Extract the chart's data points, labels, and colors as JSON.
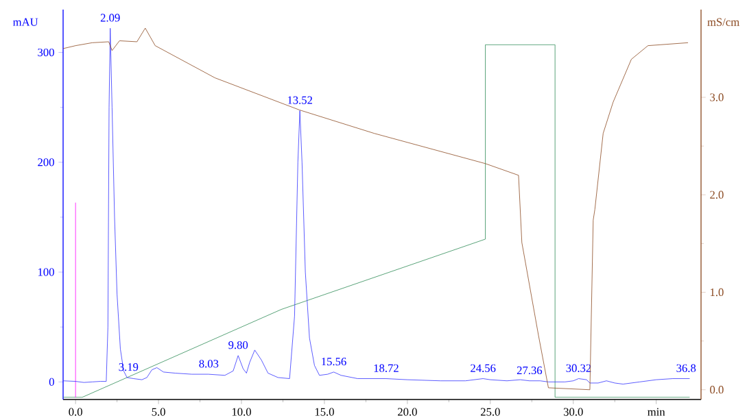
{
  "chart_data": {
    "type": "line",
    "ylabel": "mAU",
    "y2label": "mS/cm",
    "xlim": [
      -0.75,
      37.7
    ],
    "ylim": [
      -16,
      339
    ],
    "y2lim": [
      -0.1,
      3.9
    ],
    "xticks": [
      {
        "value": 0,
        "label": "0.0"
      },
      {
        "value": 5,
        "label": "5.0"
      },
      {
        "value": 10,
        "label": "10.0"
      },
      {
        "value": 15,
        "label": "15.0"
      },
      {
        "value": 20,
        "label": "20.0"
      },
      {
        "value": 25,
        "label": "25.0"
      },
      {
        "value": 30,
        "label": "30.0"
      },
      {
        "value": 35,
        "label": "min"
      }
    ],
    "yticks": [
      0,
      100,
      200,
      300
    ],
    "y2ticks": [
      {
        "value": 0,
        "label": "0.0"
      },
      {
        "value": 1,
        "label": "1.0"
      },
      {
        "value": 2,
        "label": "2.0"
      },
      {
        "value": 3,
        "label": "3.0"
      }
    ],
    "series": [
      {
        "color": "#2e8b57",
        "x": [
          -0.75,
          0.4,
          12.4,
          24.7,
          24.7,
          28.9,
          28.9,
          37.0
        ],
        "values": [
          -14,
          -14,
          66,
          130,
          307,
          307,
          -14,
          -14
        ]
      },
      {
        "color": "#ff00ff",
        "x": [
          0,
          0
        ],
        "values": [
          -14,
          163
        ]
      },
      {
        "color": "#8b4a22",
        "axis": "y2",
        "x": [
          -0.75,
          0,
          1.0,
          2.0,
          2.2,
          2.65,
          3.7,
          4.2,
          4.8,
          8.4,
          13.5,
          18.0,
          24.7,
          26.7,
          26.9,
          27.9,
          28.5,
          31.0,
          31.2,
          31.3,
          31.8,
          32.4,
          33.5,
          34.5,
          36.9
        ],
        "values": [
          3.5,
          3.53,
          3.56,
          3.57,
          3.48,
          3.58,
          3.57,
          3.71,
          3.53,
          3.2,
          2.87,
          2.63,
          2.32,
          2.2,
          1.51,
          0.56,
          0.02,
          0.0,
          1.74,
          1.85,
          2.63,
          2.95,
          3.39,
          3.53,
          3.56
        ]
      },
      {
        "color": "#3333ff",
        "x": [
          -0.75,
          0,
          0.5,
          1.0,
          1.5,
          1.85,
          1.95,
          2.02,
          2.09,
          2.2,
          2.35,
          2.5,
          2.7,
          2.9,
          3.1,
          3.5,
          4.0,
          4.3,
          4.6,
          4.9,
          5.3,
          6.0,
          7.0,
          8.0,
          9.0,
          9.5,
          9.8,
          10.1,
          10.3,
          10.5,
          10.8,
          11.2,
          11.6,
          12.2,
          12.9,
          13.2,
          13.4,
          13.52,
          13.65,
          13.85,
          14.1,
          14.4,
          14.7,
          15.2,
          15.56,
          16.0,
          17.0,
          18.0,
          18.72,
          20,
          22,
          23.5,
          24.56,
          25,
          26,
          26.8,
          27.36,
          28,
          28.5,
          29.5,
          30.0,
          30.32,
          30.8,
          31.0,
          31.5,
          32,
          32.5,
          33.0,
          34,
          35,
          36,
          37
        ],
        "values": [
          1,
          0.5,
          -0.5,
          0,
          0.5,
          0.5,
          50,
          250,
          322,
          250,
          150,
          80,
          30,
          10,
          4,
          3,
          2,
          4,
          11,
          13,
          9,
          8,
          7,
          7,
          6,
          10,
          24,
          12,
          8,
          18,
          29,
          20,
          8,
          4,
          3,
          60,
          200,
          247,
          200,
          100,
          40,
          15,
          6,
          7,
          9,
          6,
          3,
          3,
          3,
          2,
          1,
          1,
          3,
          2,
          1,
          2,
          1,
          1,
          0,
          0,
          1,
          3,
          2,
          -1,
          -1,
          1,
          -1,
          -2,
          0,
          2,
          3,
          3
        ]
      }
    ],
    "annotations": [
      {
        "text": "2.09",
        "x": 2.09,
        "y": 322
      },
      {
        "text": "3.19",
        "x": 3.19,
        "y": 4
      },
      {
        "text": "8.03",
        "x": 8.03,
        "y": 7
      },
      {
        "text": "9.80",
        "x": 9.8,
        "y": 24
      },
      {
        "text": "13.52",
        "x": 13.52,
        "y": 247
      },
      {
        "text": "15.56",
        "x": 15.56,
        "y": 9
      },
      {
        "text": "18.72",
        "x": 18.72,
        "y": 3
      },
      {
        "text": "24.56",
        "x": 24.56,
        "y": 3
      },
      {
        "text": "27.36",
        "x": 27.36,
        "y": 1
      },
      {
        "text": "30.32",
        "x": 30.32,
        "y": 3
      },
      {
        "text": "36.8",
        "x": 36.8,
        "y": 3
      }
    ]
  }
}
